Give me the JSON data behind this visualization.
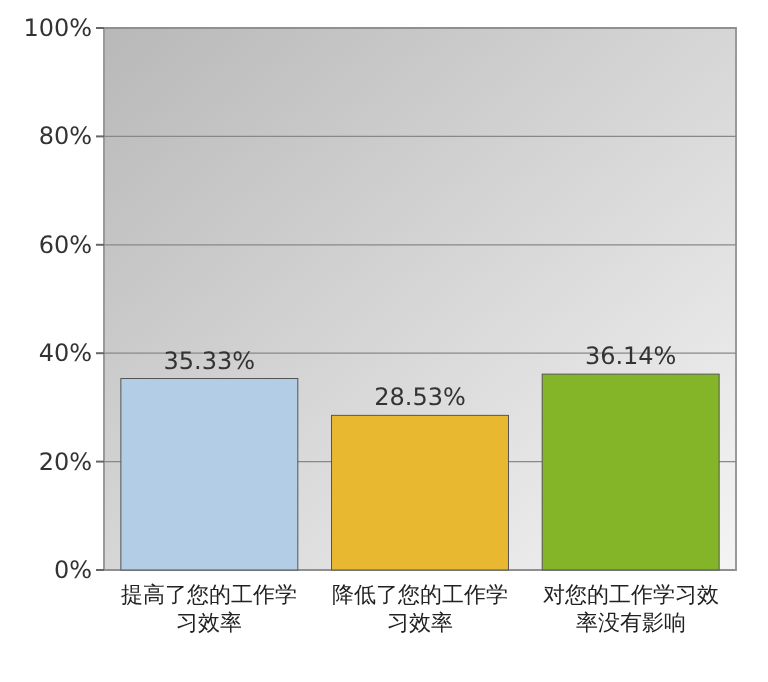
{
  "chart_data": {
    "type": "bar",
    "categories": [
      "提高了您的工作学习效率",
      "降低了您的工作学习效率",
      "对您的工作学习效率没有影响"
    ],
    "values": [
      35.33,
      28.53,
      36.14
    ],
    "colors": [
      "#b4cde6",
      "#e8b830",
      "#84b428"
    ],
    "value_labels": [
      "35.33%",
      "28.53%",
      "36.14%"
    ],
    "ylim": [
      0,
      100
    ],
    "yticks": [
      {
        "value": 0,
        "label": "0%"
      },
      {
        "value": 20,
        "label": "20%"
      },
      {
        "value": 40,
        "label": "40%"
      },
      {
        "value": 60,
        "label": "60%"
      },
      {
        "value": 80,
        "label": "80%"
      },
      {
        "value": 100,
        "label": "100%"
      }
    ],
    "grid": "y"
  }
}
